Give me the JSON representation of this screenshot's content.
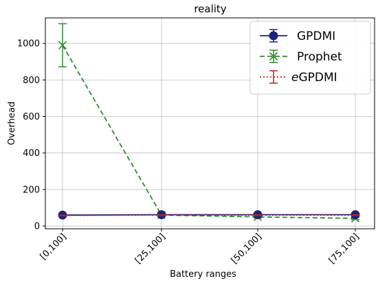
{
  "chart_data": {
    "type": "line",
    "title": "reality",
    "xlabel": "Battery ranges",
    "ylabel": "Overhead",
    "categories": [
      "[0,100]",
      "[25,100]",
      "[50,100]",
      "[75,100]"
    ],
    "ylim": [
      -15,
      1140
    ],
    "yticks": [
      0,
      200,
      400,
      600,
      800,
      1000
    ],
    "grid": true,
    "legend_position": "top-right",
    "series": [
      {
        "name": "GPDMI",
        "values": [
          60,
          62,
          62,
          62
        ],
        "errors": [
          4,
          4,
          4,
          4
        ],
        "color": "#1a237e",
        "linestyle": "solid",
        "marker": "circle"
      },
      {
        "name": "Prophet",
        "values": [
          990,
          60,
          50,
          42
        ],
        "errors": [
          118,
          6,
          6,
          6
        ],
        "color": "#2e8b2e",
        "linestyle": "dashed",
        "marker": "x"
      },
      {
        "name": "eGPDMI",
        "name_italic_prefix": "e",
        "name_rest": "GPDMI",
        "values": [
          58,
          60,
          60,
          60
        ],
        "errors": [
          2,
          2,
          2,
          2
        ],
        "color": "#b22222",
        "linestyle": "dotted",
        "marker": "none"
      }
    ]
  }
}
